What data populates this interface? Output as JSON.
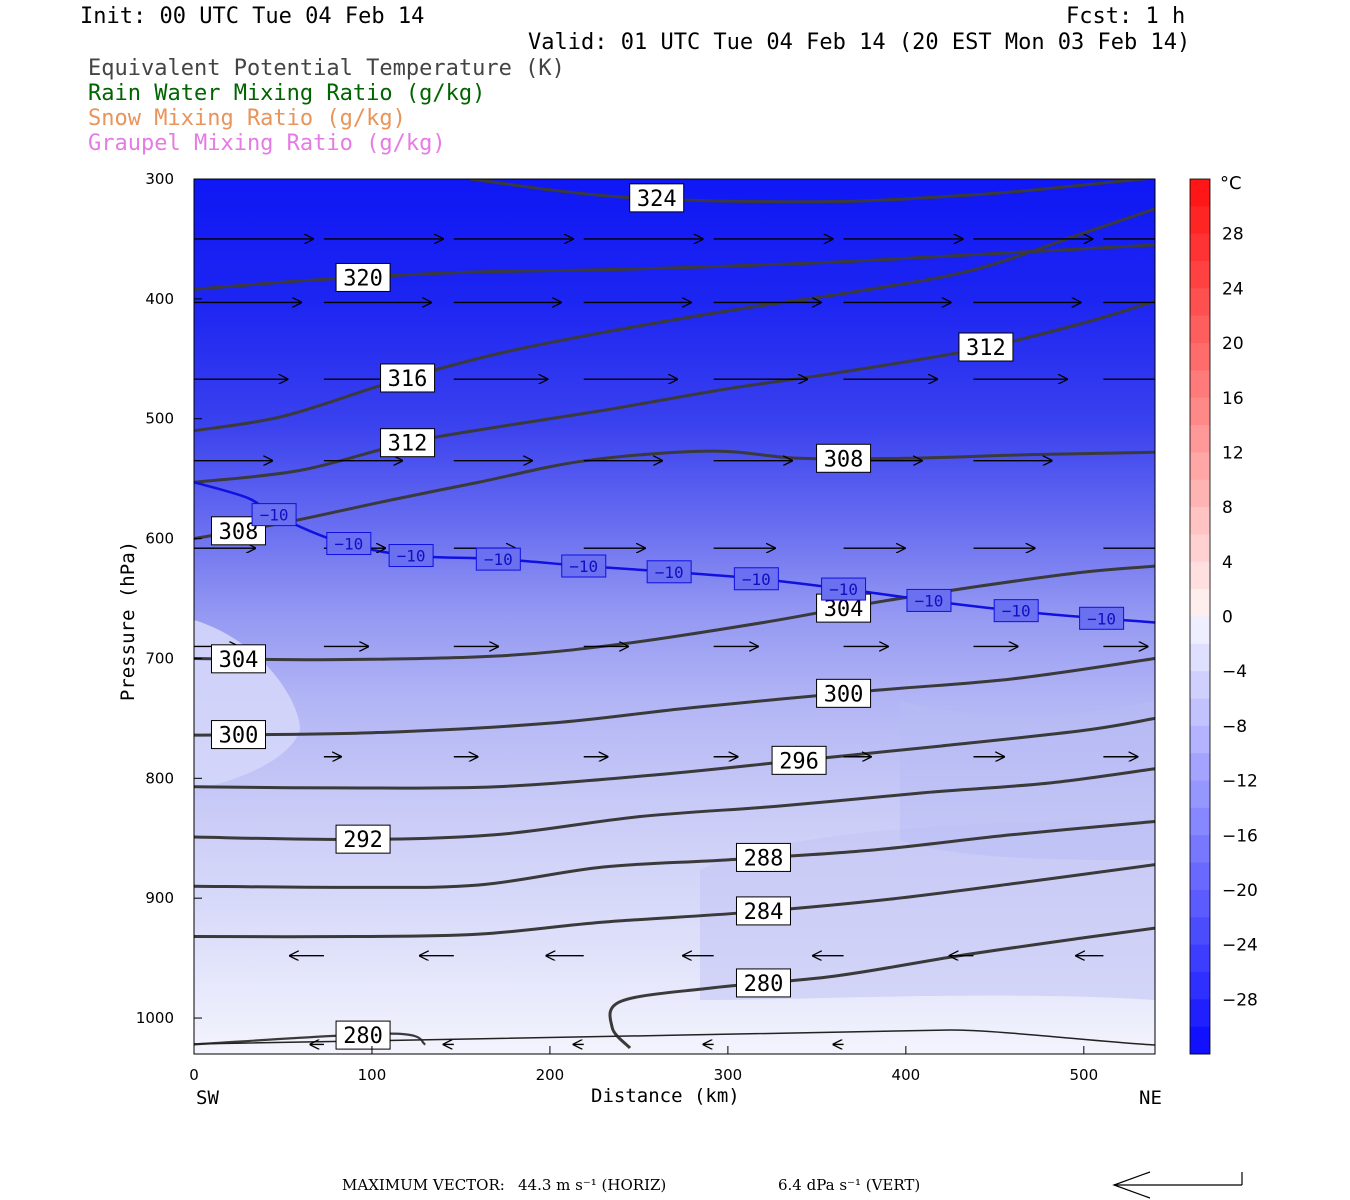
{
  "header": {
    "init": "Init: 00 UTC Tue 04 Feb 14",
    "fcst": "Fcst:    1 h",
    "valid": "Valid: 01 UTC Tue 04 Feb 14 (20 EST Mon 03 Feb 14)"
  },
  "legend": [
    {
      "label": "Equivalent Potential Temperature (K)",
      "color": "#444444"
    },
    {
      "label": "Rain Water Mixing Ratio (g/kg)",
      "color": "#006400"
    },
    {
      "label": "Snow Mixing Ratio (g/kg)",
      "color": "#e8945a"
    },
    {
      "label": "Graupel Mixing Ratio (g/kg)",
      "color": "#e57be5"
    }
  ],
  "footer": {
    "max_vector_label": "MAXIMUM VECTOR:",
    "horiz": "44.3 m s⁻¹ (HORIZ)",
    "vert": "6.4 dPa s⁻¹ (VERT)"
  },
  "chart_data": {
    "type": "heatmap",
    "xlabel": "Distance (km)",
    "ylabel": "Pressure (hPa)",
    "xlim": [
      0,
      540
    ],
    "ylim": [
      1030,
      300
    ],
    "x_ticks": [
      0,
      100,
      200,
      300,
      400,
      500
    ],
    "y_ticks": [
      300,
      400,
      500,
      600,
      700,
      800,
      900,
      1000
    ],
    "x_end_labels": {
      "left": "SW",
      "right": "NE"
    },
    "colorbar": {
      "unit": "°C",
      "ticks": [
        28,
        24,
        20,
        16,
        12,
        8,
        4,
        0,
        -4,
        -8,
        -12,
        -16,
        -20,
        -24,
        -28
      ],
      "tick_labels": [
        "28",
        "24",
        "20",
        "16",
        "12",
        "8",
        "4",
        "0",
        "−4",
        "−8",
        "−12",
        "−16",
        "−20",
        "−24",
        "−28"
      ],
      "range": [
        -32,
        32
      ]
    },
    "theta_e_contours": [
      {
        "value": 324,
        "label": "324",
        "points": [
          [
            155,
            300
          ],
          [
            240,
            315
          ],
          [
            350,
            319
          ],
          [
            440,
            313
          ],
          [
            500,
            305
          ],
          [
            540,
            299
          ]
        ]
      },
      {
        "value": 320,
        "label": "320",
        "points": [
          [
            0,
            392
          ],
          [
            70,
            384
          ],
          [
            150,
            378
          ],
          [
            250,
            375
          ],
          [
            350,
            370
          ],
          [
            440,
            363
          ],
          [
            540,
            355
          ]
        ]
      },
      {
        "value": 316,
        "label": "316",
        "points": [
          [
            0,
            510
          ],
          [
            50,
            498
          ],
          [
            110,
            470
          ],
          [
            170,
            446
          ],
          [
            230,
            428
          ],
          [
            300,
            410
          ],
          [
            380,
            392
          ],
          [
            440,
            375
          ],
          [
            500,
            345
          ],
          [
            540,
            325
          ]
        ]
      },
      {
        "value": 312,
        "label": "312",
        "points": [
          [
            0,
            553
          ],
          [
            60,
            543
          ],
          [
            120,
            520
          ],
          [
            170,
            507
          ],
          [
            230,
            493
          ],
          [
            300,
            475
          ],
          [
            360,
            462
          ],
          [
            440,
            442
          ],
          [
            500,
            420
          ],
          [
            540,
            402
          ]
        ]
      },
      {
        "value": 308,
        "label": "308",
        "points": [
          [
            0,
            600
          ],
          [
            50,
            587
          ],
          [
            110,
            568
          ],
          [
            160,
            553
          ],
          [
            220,
            535
          ],
          [
            290,
            527
          ],
          [
            340,
            533
          ],
          [
            400,
            533
          ],
          [
            470,
            530
          ],
          [
            540,
            528
          ]
        ]
      },
      {
        "value": 304,
        "label": "304",
        "points": [
          [
            0,
            700
          ],
          [
            80,
            701
          ],
          [
            170,
            698
          ],
          [
            240,
            688
          ],
          [
            320,
            670
          ],
          [
            380,
            654
          ],
          [
            440,
            640
          ],
          [
            500,
            628
          ],
          [
            540,
            623
          ]
        ]
      },
      {
        "value": 300,
        "label": "300",
        "points": [
          [
            0,
            764
          ],
          [
            100,
            762
          ],
          [
            200,
            754
          ],
          [
            280,
            741
          ],
          [
            380,
            727
          ],
          [
            460,
            717
          ],
          [
            540,
            700
          ]
        ]
      },
      {
        "value": 296,
        "label": "296",
        "points": [
          [
            0,
            807
          ],
          [
            80,
            808
          ],
          [
            170,
            807
          ],
          [
            260,
            797
          ],
          [
            340,
            785
          ],
          [
            420,
            773
          ],
          [
            500,
            760
          ],
          [
            540,
            750
          ]
        ]
      },
      {
        "value": 292,
        "label": "292",
        "points": [
          [
            0,
            849
          ],
          [
            90,
            851
          ],
          [
            170,
            847
          ],
          [
            250,
            832
          ],
          [
            330,
            823
          ],
          [
            410,
            812
          ],
          [
            480,
            804
          ],
          [
            540,
            792
          ]
        ]
      },
      {
        "value": 288,
        "label": "288",
        "points": [
          [
            0,
            890
          ],
          [
            90,
            891
          ],
          [
            160,
            889
          ],
          [
            230,
            874
          ],
          [
            300,
            868
          ],
          [
            380,
            860
          ],
          [
            460,
            847
          ],
          [
            540,
            836
          ]
        ]
      },
      {
        "value": 284,
        "label": "284",
        "points": [
          [
            0,
            932
          ],
          [
            90,
            932
          ],
          [
            160,
            930
          ],
          [
            230,
            920
          ],
          [
            310,
            912
          ],
          [
            390,
            901
          ],
          [
            470,
            886
          ],
          [
            540,
            872
          ]
        ]
      },
      {
        "value": 280,
        "label": "280",
        "points": [
          [
            0,
            1022
          ],
          [
            110,
            1013
          ],
          [
            130,
            1022
          ]
        ]
      },
      {
        "value": 280,
        "label": "280",
        "points": [
          [
            245,
            1025
          ],
          [
            235,
            1008
          ],
          [
            240,
            986
          ],
          [
            290,
            975
          ],
          [
            360,
            965
          ],
          [
            430,
            948
          ],
          [
            500,
            933
          ],
          [
            540,
            925
          ]
        ]
      }
    ],
    "temperature_contour": {
      "value": -10,
      "label": "−10",
      "color": "#1010e0",
      "points": [
        [
          0,
          553
        ],
        [
          30,
          566
        ],
        [
          45,
          580
        ],
        [
          80,
          602
        ],
        [
          120,
          614
        ],
        [
          170,
          617
        ],
        [
          220,
          623
        ],
        [
          270,
          628
        ],
        [
          320,
          634
        ],
        [
          370,
          643
        ],
        [
          430,
          655
        ],
        [
          480,
          663
        ],
        [
          540,
          670
        ]
      ]
    },
    "wind_vectors": [
      {
        "x": 0,
        "p": 350,
        "u": 70,
        "w": 0
      },
      {
        "x": 73,
        "p": 350,
        "u": 70,
        "w": 0
      },
      {
        "x": 146,
        "p": 350,
        "u": 70,
        "w": 0
      },
      {
        "x": 219,
        "p": 350,
        "u": 70,
        "w": 0
      },
      {
        "x": 292,
        "p": 350,
        "u": 70,
        "w": 0
      },
      {
        "x": 365,
        "p": 350,
        "u": 70,
        "w": 0
      },
      {
        "x": 438,
        "p": 350,
        "u": 70,
        "w": 0
      },
      {
        "x": 511,
        "p": 350,
        "u": 70,
        "w": 0
      },
      {
        "x": 0,
        "p": 403,
        "u": 63,
        "w": 0
      },
      {
        "x": 73,
        "p": 403,
        "u": 63,
        "w": 0
      },
      {
        "x": 146,
        "p": 403,
        "u": 63,
        "w": 0
      },
      {
        "x": 219,
        "p": 403,
        "u": 63,
        "w": 0
      },
      {
        "x": 292,
        "p": 403,
        "u": 63,
        "w": 0
      },
      {
        "x": 365,
        "p": 403,
        "u": 63,
        "w": 0
      },
      {
        "x": 438,
        "p": 403,
        "u": 63,
        "w": 0
      },
      {
        "x": 511,
        "p": 403,
        "u": 63,
        "w": 0
      },
      {
        "x": 0,
        "p": 467,
        "u": 55,
        "w": 0
      },
      {
        "x": 73,
        "p": 467,
        "u": 55,
        "w": 0
      },
      {
        "x": 146,
        "p": 467,
        "u": 55,
        "w": 0
      },
      {
        "x": 219,
        "p": 467,
        "u": 55,
        "w": 0
      },
      {
        "x": 292,
        "p": 467,
        "u": 55,
        "w": 0
      },
      {
        "x": 365,
        "p": 467,
        "u": 55,
        "w": 0
      },
      {
        "x": 438,
        "p": 467,
        "u": 55,
        "w": 0
      },
      {
        "x": 511,
        "p": 467,
        "u": 55,
        "w": 0
      },
      {
        "x": 0,
        "p": 535,
        "u": 46,
        "w": 0
      },
      {
        "x": 73,
        "p": 535,
        "u": 46,
        "w": 0
      },
      {
        "x": 146,
        "p": 535,
        "u": 46,
        "w": 0
      },
      {
        "x": 219,
        "p": 535,
        "u": 46,
        "w": 0
      },
      {
        "x": 292,
        "p": 535,
        "u": 46,
        "w": 0
      },
      {
        "x": 365,
        "p": 535,
        "u": 46,
        "w": 0
      },
      {
        "x": 438,
        "p": 535,
        "u": 46,
        "w": 0
      },
      {
        "x": 0,
        "p": 608,
        "u": 36,
        "w": 0
      },
      {
        "x": 73,
        "p": 608,
        "u": 36,
        "w": 0
      },
      {
        "x": 146,
        "p": 608,
        "u": 36,
        "w": 0
      },
      {
        "x": 219,
        "p": 608,
        "u": 36,
        "w": 0
      },
      {
        "x": 292,
        "p": 608,
        "u": 36,
        "w": 0
      },
      {
        "x": 365,
        "p": 608,
        "u": 36,
        "w": 0
      },
      {
        "x": 438,
        "p": 608,
        "u": 36,
        "w": 0
      },
      {
        "x": 511,
        "p": 608,
        "u": 36,
        "w": 0
      },
      {
        "x": 0,
        "p": 690,
        "u": 26,
        "w": 0
      },
      {
        "x": 73,
        "p": 690,
        "u": 26,
        "w": 0
      },
      {
        "x": 146,
        "p": 690,
        "u": 26,
        "w": 0
      },
      {
        "x": 219,
        "p": 690,
        "u": 26,
        "w": 0
      },
      {
        "x": 292,
        "p": 690,
        "u": 26,
        "w": 0
      },
      {
        "x": 365,
        "p": 690,
        "u": 26,
        "w": 0
      },
      {
        "x": 438,
        "p": 690,
        "u": 26,
        "w": 0
      },
      {
        "x": 511,
        "p": 690,
        "u": 26,
        "w": 0
      },
      {
        "x": 73,
        "p": 782,
        "u": 10,
        "w": 0
      },
      {
        "x": 146,
        "p": 782,
        "u": 14,
        "w": 0
      },
      {
        "x": 219,
        "p": 782,
        "u": 14,
        "w": 0
      },
      {
        "x": 292,
        "p": 782,
        "u": 14,
        "w": 0
      },
      {
        "x": 365,
        "p": 782,
        "u": 16,
        "w": 0
      },
      {
        "x": 438,
        "p": 782,
        "u": 18,
        "w": 0
      },
      {
        "x": 511,
        "p": 782,
        "u": 20,
        "w": 0
      },
      {
        "x": 73,
        "p": 948,
        "u": -20,
        "w": 0
      },
      {
        "x": 146,
        "p": 948,
        "u": -20,
        "w": 0
      },
      {
        "x": 219,
        "p": 948,
        "u": -22,
        "w": 0
      },
      {
        "x": 292,
        "p": 948,
        "u": -18,
        "w": 0
      },
      {
        "x": 365,
        "p": 948,
        "u": -18,
        "w": 0
      },
      {
        "x": 438,
        "p": 948,
        "u": -14,
        "w": 0
      },
      {
        "x": 511,
        "p": 948,
        "u": -16,
        "w": 0
      },
      {
        "x": 0,
        "p": 1022,
        "u": -8,
        "w": 0
      },
      {
        "x": 73,
        "p": 1022,
        "u": -8,
        "w": 0
      },
      {
        "x": 146,
        "p": 1022,
        "u": -6,
        "w": 0
      },
      {
        "x": 219,
        "p": 1022,
        "u": -6,
        "w": 0
      },
      {
        "x": 292,
        "p": 1022,
        "u": -6,
        "w": 0
      },
      {
        "x": 365,
        "p": 1022,
        "u": -6,
        "w": 0
      }
    ]
  }
}
